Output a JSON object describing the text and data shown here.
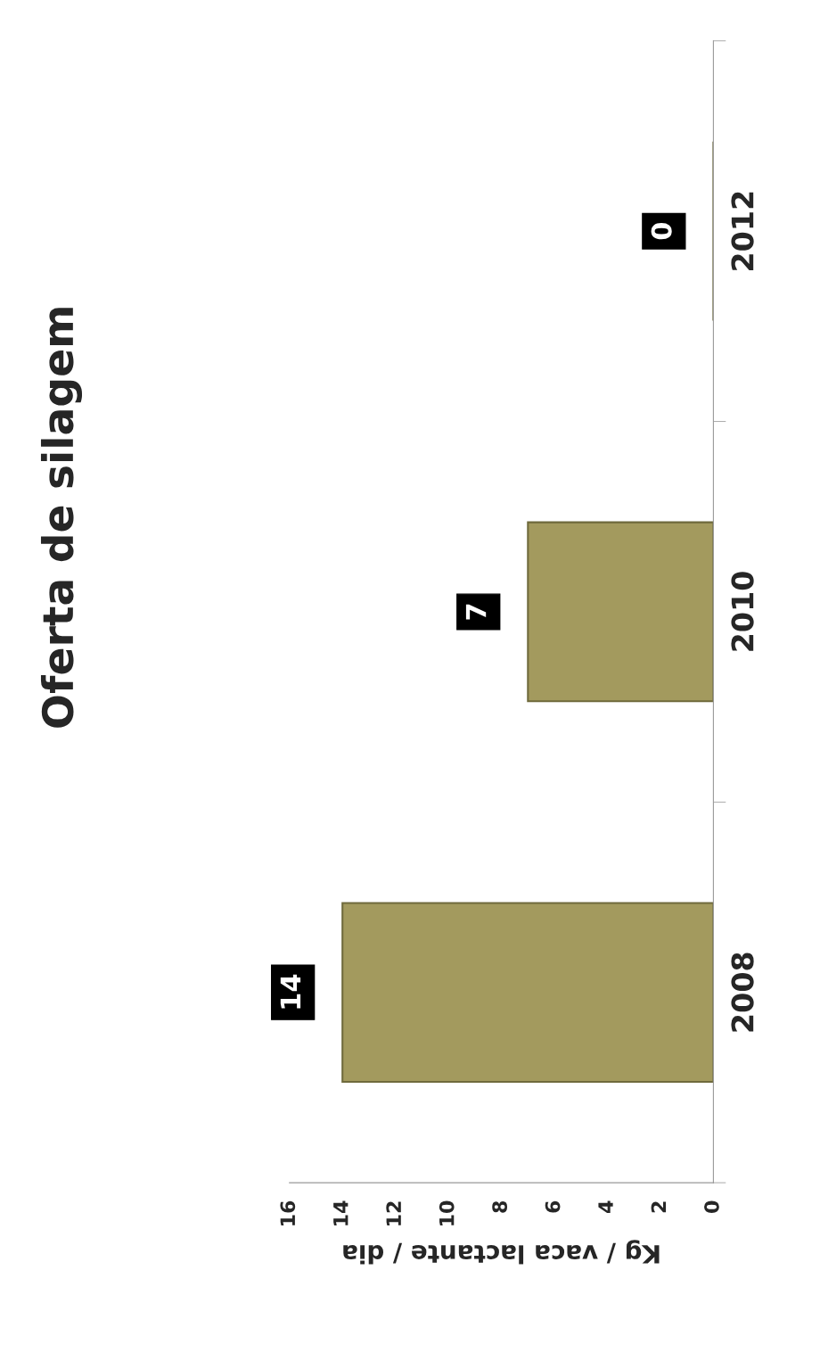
{
  "chart_data": {
    "type": "bar",
    "orientation": "horizontal",
    "title": "Oferta de silagem",
    "xlabel": "Kg / vaca lactante / dia",
    "categories": [
      "2012",
      "2010",
      "2008"
    ],
    "values": [
      0,
      7,
      14
    ],
    "color": "#a39a5e",
    "xlim": [
      16,
      0
    ],
    "xticks": [
      0,
      2,
      4,
      6,
      8,
      10,
      12,
      14,
      16
    ],
    "grid": false,
    "data_labels": true
  }
}
